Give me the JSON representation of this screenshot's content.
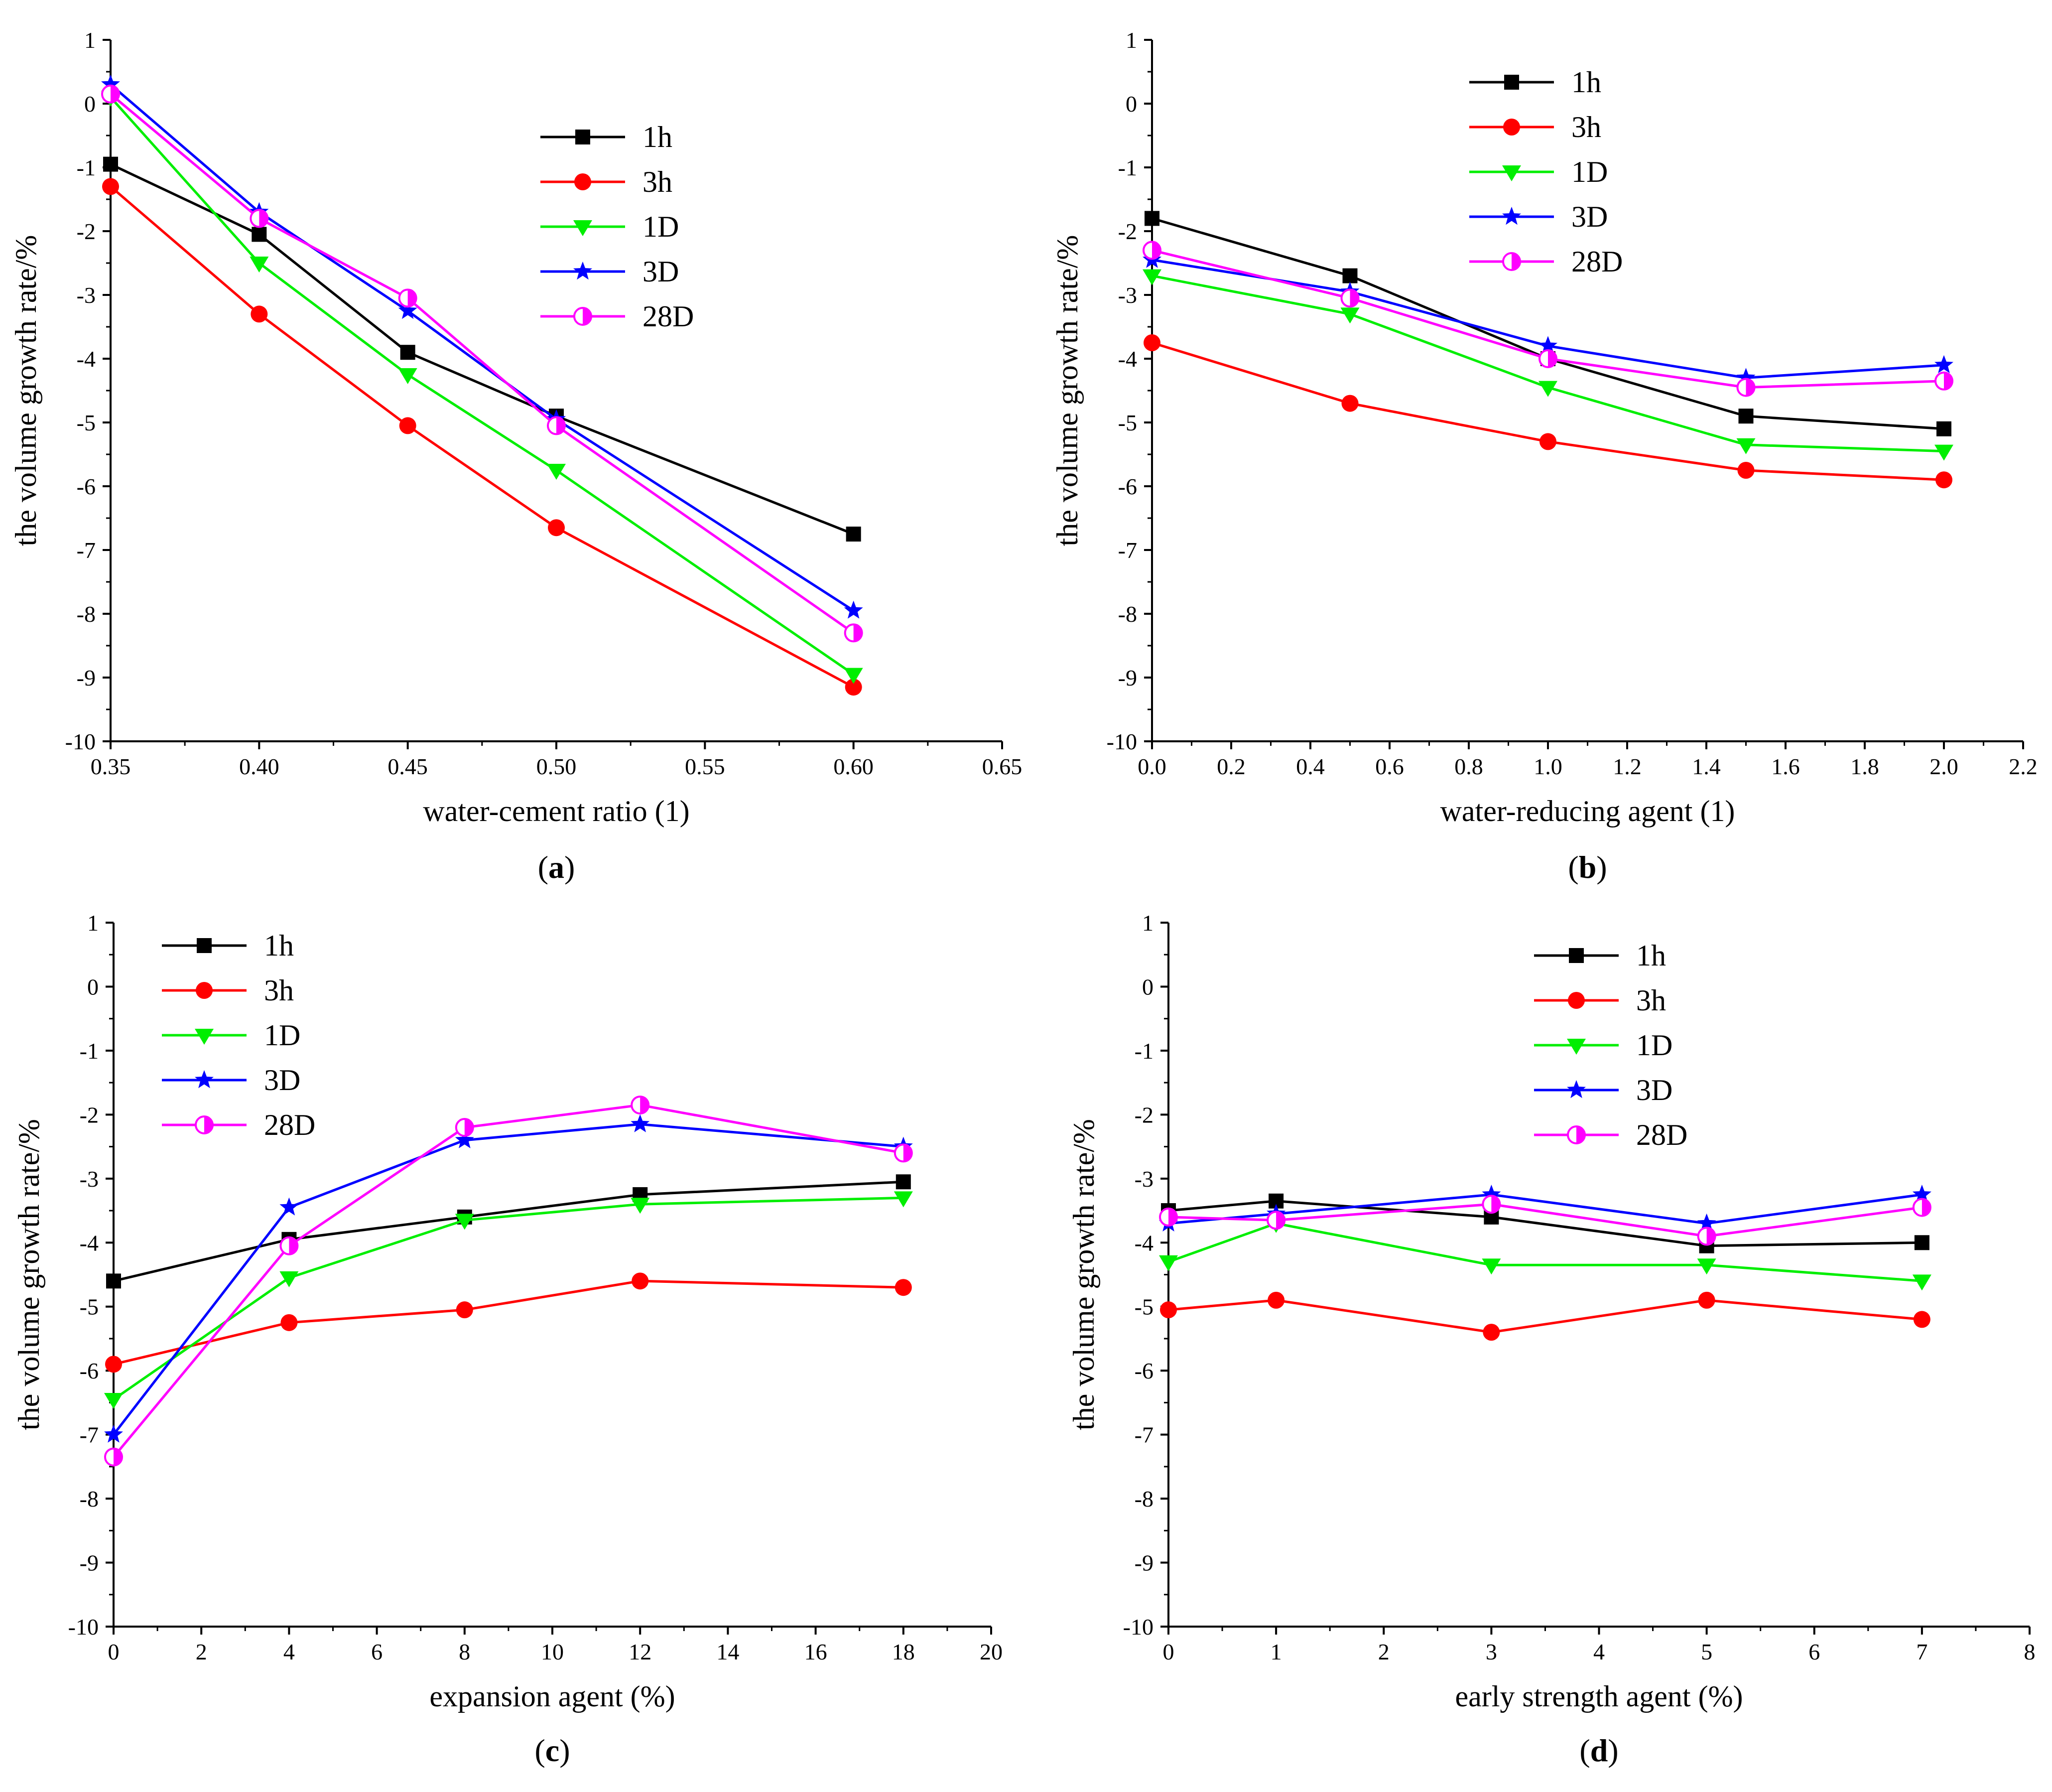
{
  "chart_data": [
    {
      "type": "line",
      "panel_label_open": "(",
      "panel_label": "a",
      "panel_label_close": ")",
      "title": "",
      "xlabel": "water-cement ratio (1)",
      "ylabel": "the volume growth rate/%",
      "xlim": [
        0.35,
        0.65
      ],
      "ylim": [
        -10,
        1
      ],
      "xticks": [
        "0.35",
        "0.40",
        "0.45",
        "0.50",
        "0.55",
        "0.60",
        "0.65"
      ],
      "xtick_values": [
        0.35,
        0.4,
        0.45,
        0.5,
        0.55,
        0.6,
        0.65
      ],
      "yticks": [
        "1",
        "0",
        "-1",
        "-2",
        "-3",
        "-4",
        "-5",
        "-6",
        "-7",
        "-8",
        "-9",
        "-10"
      ],
      "ytick_values": [
        1,
        0,
        -1,
        -2,
        -3,
        -4,
        -5,
        -6,
        -7,
        -8,
        -9,
        -10
      ],
      "legend_position": "upper-middle",
      "x": [
        0.35,
        0.4,
        0.45,
        0.5,
        0.6
      ],
      "series": [
        {
          "name": "1h",
          "values": [
            -0.95,
            -2.05,
            -3.9,
            -4.9,
            -6.75
          ]
        },
        {
          "name": "3h",
          "values": [
            -1.3,
            -3.3,
            -5.05,
            -6.65,
            -9.15
          ]
        },
        {
          "name": "1D",
          "values": [
            0.1,
            -2.5,
            -4.25,
            -5.75,
            -8.95
          ]
        },
        {
          "name": "3D",
          "values": [
            0.3,
            -1.7,
            -3.25,
            -4.95,
            -7.95
          ]
        },
        {
          "name": "28D",
          "values": [
            0.15,
            -1.8,
            -3.05,
            -5.05,
            -8.3
          ]
        }
      ]
    },
    {
      "type": "line",
      "panel_label_open": "(",
      "panel_label": "b",
      "panel_label_close": ")",
      "title": "",
      "xlabel": "water-reducing agent (1)",
      "ylabel": "the volume growth rate/%",
      "xlim": [
        0,
        2.2
      ],
      "ylim": [
        -10,
        1
      ],
      "xticks": [
        "0.0",
        "0.2",
        "0.4",
        "0.6",
        "0.8",
        "1.0",
        "1.2",
        "1.4",
        "1.6",
        "1.8",
        "2.0",
        "2.2"
      ],
      "xtick_values": [
        0,
        0.2,
        0.4,
        0.6,
        0.8,
        1.0,
        1.2,
        1.4,
        1.6,
        1.8,
        2.0,
        2.2
      ],
      "yticks": [
        "1",
        "0",
        "-1",
        "-2",
        "-3",
        "-4",
        "-5",
        "-6",
        "-7",
        "-8",
        "-9",
        "-10"
      ],
      "ytick_values": [
        1,
        0,
        -1,
        -2,
        -3,
        -4,
        -5,
        -6,
        -7,
        -8,
        -9,
        -10
      ],
      "legend_position": "top-middle",
      "x": [
        0,
        0.5,
        1.0,
        1.5,
        2.0
      ],
      "series": [
        {
          "name": "1h",
          "values": [
            -1.8,
            -2.7,
            -4.0,
            -4.9,
            -5.1
          ]
        },
        {
          "name": "3h",
          "values": [
            -3.75,
            -4.7,
            -5.3,
            -5.75,
            -5.9
          ]
        },
        {
          "name": "1D",
          "values": [
            -2.7,
            -3.3,
            -4.45,
            -5.35,
            -5.45
          ]
        },
        {
          "name": "3D",
          "values": [
            -2.45,
            -2.95,
            -3.8,
            -4.3,
            -4.1
          ]
        },
        {
          "name": "28D",
          "values": [
            -2.3,
            -3.05,
            -4.0,
            -4.45,
            -4.35
          ]
        }
      ]
    },
    {
      "type": "line",
      "panel_label_open": "(",
      "panel_label": "c",
      "panel_label_close": ")",
      "title": "",
      "xlabel": "expansion agent (%)",
      "ylabel": "the volume growth rate/%",
      "xlim": [
        0,
        20
      ],
      "ylim": [
        -10,
        1
      ],
      "xticks": [
        "0",
        "2",
        "4",
        "6",
        "8",
        "10",
        "12",
        "14",
        "16",
        "18",
        "20"
      ],
      "xtick_values": [
        0,
        2,
        4,
        6,
        8,
        10,
        12,
        14,
        16,
        18,
        20
      ],
      "yticks": [
        "1",
        "0",
        "-1",
        "-2",
        "-3",
        "-4",
        "-5",
        "-6",
        "-7",
        "-8",
        "-9",
        "-10"
      ],
      "ytick_values": [
        1,
        0,
        -1,
        -2,
        -3,
        -4,
        -5,
        -6,
        -7,
        -8,
        -9,
        -10
      ],
      "legend_position": "top-left",
      "x": [
        0,
        4,
        8,
        12,
        18
      ],
      "series": [
        {
          "name": "1h",
          "values": [
            -4.6,
            -3.95,
            -3.6,
            -3.25,
            -3.05
          ]
        },
        {
          "name": "3h",
          "values": [
            -5.9,
            -5.25,
            -5.05,
            -4.6,
            -4.7
          ]
        },
        {
          "name": "1D",
          "values": [
            -6.45,
            -4.55,
            -3.65,
            -3.4,
            -3.3
          ]
        },
        {
          "name": "3D",
          "values": [
            -7.0,
            -3.45,
            -2.4,
            -2.15,
            -2.5
          ]
        },
        {
          "name": "28D",
          "values": [
            -7.35,
            -4.05,
            -2.2,
            -1.85,
            -2.6
          ]
        }
      ]
    },
    {
      "type": "line",
      "panel_label_open": "(",
      "panel_label": "d",
      "panel_label_close": ")",
      "title": "",
      "xlabel": "early strength agent (%)",
      "ylabel": "the volume growth rate/%",
      "xlim": [
        0,
        8
      ],
      "ylim": [
        -10,
        1
      ],
      "xticks": [
        "0",
        "1",
        "2",
        "3",
        "4",
        "5",
        "6",
        "7",
        "8"
      ],
      "xtick_values": [
        0,
        1,
        2,
        3,
        4,
        5,
        6,
        7,
        8
      ],
      "yticks": [
        "1",
        "0",
        "-1",
        "-2",
        "-3",
        "-4",
        "-5",
        "-6",
        "-7",
        "-8",
        "-9",
        "-10"
      ],
      "ytick_values": [
        1,
        0,
        -1,
        -2,
        -3,
        -4,
        -5,
        -6,
        -7,
        -8,
        -9,
        -10
      ],
      "legend_position": "top-middle",
      "x": [
        0,
        1,
        3,
        5,
        7
      ],
      "series": [
        {
          "name": "1h",
          "values": [
            -3.5,
            -3.35,
            -3.6,
            -4.05,
            -4.0
          ]
        },
        {
          "name": "3h",
          "values": [
            -5.05,
            -4.9,
            -5.4,
            -4.9,
            -5.2
          ]
        },
        {
          "name": "1D",
          "values": [
            -4.3,
            -3.7,
            -4.35,
            -4.35,
            -4.6
          ]
        },
        {
          "name": "3D",
          "values": [
            -3.7,
            -3.55,
            -3.25,
            -3.7,
            -3.25
          ]
        },
        {
          "name": "28D",
          "values": [
            -3.6,
            -3.65,
            -3.4,
            -3.9,
            -3.45
          ]
        }
      ]
    }
  ],
  "series_styles": [
    {
      "name": "1h",
      "color": "#000000",
      "marker": "square"
    },
    {
      "name": "3h",
      "color": "#ff0000",
      "marker": "circle"
    },
    {
      "name": "1D",
      "color": "#00ee00",
      "marker": "triangle-down"
    },
    {
      "name": "3D",
      "color": "#0000ff",
      "marker": "star"
    },
    {
      "name": "28D",
      "color": "#ff00ff",
      "marker": "half-circle"
    }
  ]
}
